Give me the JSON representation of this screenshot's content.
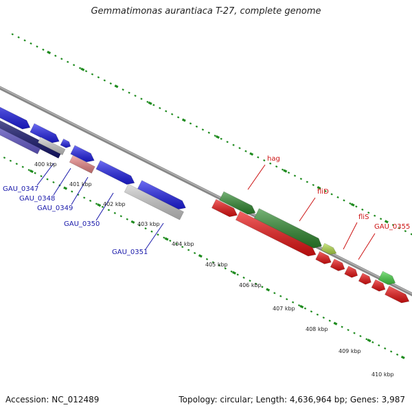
{
  "title": "Gemmatimonas aurantiaca T-27, complete genome",
  "footer": {
    "accession": "Accession: NC_012489",
    "summary": "Topology: circular; Length: 4,636,964 bp; Genes: 3,987"
  },
  "colors": {
    "backbone": "#888888",
    "blue_gene": "#1f1fee",
    "dark_blue_gene": "#161673",
    "purple_gene": "#6a5fd6",
    "grey_gene": "#cfcfcf",
    "pink_gene": "#f08888",
    "red_gene": "#ee1111",
    "dark_green_gene": "#2e8b2e",
    "light_green_gene": "#44d444",
    "yellow_green_gene": "#b6e04a",
    "blue_label": "#1818aa",
    "red_label": "#cc1111",
    "dot_green": "#1e8b1e"
  },
  "ticks": [
    "400 kbp",
    "401 kbp",
    "402 kbp",
    "403 kbp",
    "404 kbp",
    "405 kbp",
    "406 kbp",
    "407 kbp",
    "408 kbp",
    "409 kbp",
    "410 kbp"
  ],
  "gene_labels": {
    "left": [
      "GAU_0347",
      "GAU_0348",
      "GAU_0349",
      "GAU_0350",
      "GAU_0351"
    ],
    "right": [
      "hag",
      "fliD",
      "fliS",
      "GAU_0355"
    ]
  }
}
